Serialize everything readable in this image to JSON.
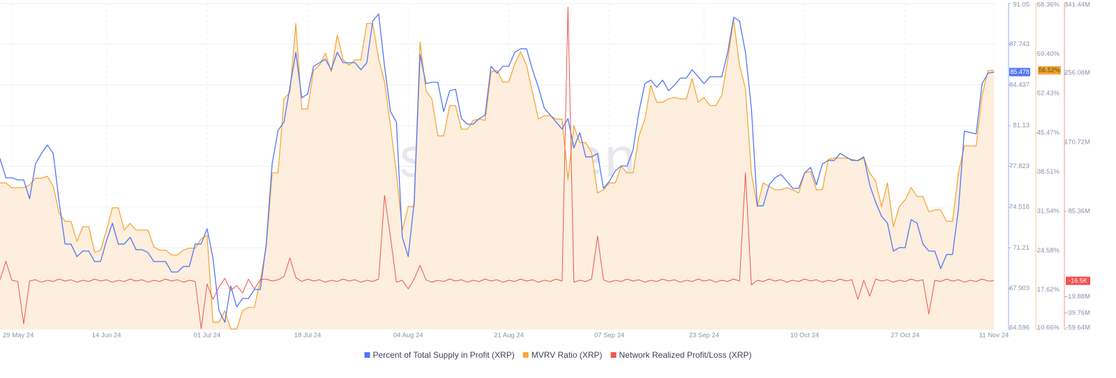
{
  "chart_data": {
    "type": "line",
    "watermark": "·santiment·",
    "categories": [
      null,
      null,
      "29 May 24",
      null,
      null,
      null,
      null,
      null,
      null,
      null,
      null,
      null,
      null,
      null,
      null,
      null,
      null,
      null,
      "14 Jun 24",
      null,
      null,
      null,
      null,
      null,
      null,
      null,
      null,
      null,
      null,
      null,
      null,
      null,
      null,
      null,
      null,
      "01 Jul 24",
      null,
      null,
      null,
      null,
      null,
      null,
      null,
      null,
      null,
      null,
      null,
      null,
      null,
      null,
      null,
      null,
      "18 Jul 24",
      null,
      null,
      null,
      null,
      null,
      null,
      null,
      null,
      null,
      null,
      null,
      null,
      null,
      null,
      null,
      null,
      "04 Aug 24",
      null,
      null,
      null,
      null,
      null,
      null,
      null,
      null,
      null,
      null,
      null,
      null,
      null,
      null,
      null,
      null,
      "21 Aug 24",
      null,
      null,
      null,
      null,
      null,
      null,
      null,
      null,
      null,
      null,
      null,
      null,
      null,
      null,
      null,
      null,
      "07 Sep 24",
      null,
      null,
      null,
      null,
      null,
      null,
      null,
      null,
      null,
      null,
      null,
      null,
      null,
      null,
      null,
      "23 Sep 24",
      null,
      null,
      null,
      null,
      null,
      null,
      null,
      null,
      null,
      null,
      null,
      null,
      null,
      null,
      null,
      null,
      "10 Oct 24",
      null,
      null,
      null,
      null,
      null,
      null,
      null,
      null,
      null,
      null,
      null,
      null,
      null,
      null,
      null,
      null,
      "27 Oct 24",
      null,
      null,
      null,
      null,
      null,
      null,
      null,
      null,
      null,
      null,
      null,
      null,
      null,
      null,
      "11 Nov 24"
    ],
    "series": [
      {
        "name": "Percent of Total Supply in Profit (XRP)",
        "color": "#5275f5",
        "axis": "y",
        "last_label": "85.478",
        "values": [
          78.47,
          76.89,
          76.89,
          76.72,
          76.72,
          75.19,
          78.02,
          78.87,
          79.55,
          78.87,
          74.91,
          71.51,
          71.51,
          70.49,
          70.94,
          70.94,
          70.09,
          70.09,
          71.79,
          73.21,
          71.51,
          71.51,
          72.07,
          71.05,
          71.05,
          70.83,
          70.09,
          70.09,
          70.09,
          69.24,
          69.24,
          69.69,
          69.69,
          71.51,
          71.51,
          72.75,
          70.37,
          66.13,
          65.16,
          68.11,
          66.41,
          67.09,
          67.09,
          67.82,
          67.82,
          71.51,
          78.02,
          80.74,
          81.42,
          84.25,
          87.08,
          83.4,
          83.69,
          85.95,
          86.24,
          86.52,
          85.67,
          87.08,
          86.24,
          86.24,
          86.24,
          85.67,
          86.24,
          89.63,
          90.2,
          85.95,
          82.27,
          81.42,
          72.07,
          70.49,
          74.91,
          86.92,
          84.54,
          84.65,
          84.65,
          82.27,
          83.97,
          84.08,
          81.7,
          81.25,
          81.25,
          81.7,
          81.99,
          85.95,
          85.39,
          85.95,
          85.95,
          87.08,
          87.37,
          87.37,
          85.67,
          84.25,
          82.55,
          81.99,
          81.42,
          80.85,
          81.7,
          79.32,
          80.57,
          78.59,
          78.59,
          78.87,
          76.04,
          76.61,
          77.46,
          77.85,
          77.85,
          79.15,
          82.27,
          84.54,
          84.82,
          84.25,
          84.82,
          83.97,
          84.42,
          84.99,
          84.99,
          85.67,
          85.1,
          84.54,
          85.1,
          85.1,
          85.1,
          87.08,
          89.92,
          89.63,
          87.08,
          82.55,
          74.62,
          74.62,
          76.32,
          76.89,
          77.17,
          76.61,
          76.04,
          76.04,
          77.28,
          77.74,
          76.32,
          78.02,
          78.3,
          78.3,
          78.87,
          78.59,
          78.3,
          78.3,
          78.59,
          76.32,
          74.91,
          73.77,
          73.21,
          70.94,
          71.22,
          71.22,
          73.49,
          73.21,
          71.51,
          70.94,
          70.94,
          69.52,
          70.66,
          70.66,
          74.34,
          80.68,
          80.57,
          80.46,
          84.54,
          85.39,
          85.478
        ]
      },
      {
        "name": "MVRV Ratio (XRP)",
        "color": "#f5a73a",
        "fill": "#fdeedd",
        "axis": "y2",
        "last_label": "56.52%",
        "values": [
          36.57,
          36.57,
          35.73,
          35.73,
          35.73,
          36.21,
          37.4,
          37.4,
          37.76,
          35.97,
          31.2,
          29.77,
          29.77,
          26.2,
          28.82,
          28.82,
          24.29,
          24.65,
          28.22,
          32.16,
          32.16,
          28.22,
          29.41,
          28.22,
          28.22,
          28.22,
          25.24,
          24.65,
          24.65,
          23.81,
          23.81,
          24.65,
          25.0,
          25.0,
          26.67,
          27.27,
          11.89,
          11.89,
          13.92,
          10.7,
          10.7,
          13.92,
          14.52,
          14.52,
          19.28,
          25.24,
          38.35,
          38.35,
          51.46,
          52.65,
          64.81,
          49.67,
          49.67,
          56.47,
          57.42,
          59.57,
          56.23,
          62.78,
          58.37,
          57.42,
          58.37,
          58.37,
          64.81,
          64.81,
          58.61,
          54.44,
          46.7,
          38.35,
          28.22,
          32.39,
          32.39,
          61.59,
          52.89,
          51.46,
          44.91,
          44.91,
          50.27,
          50.27,
          46.1,
          46.1,
          47.65,
          47.89,
          47.65,
          56.23,
          56.47,
          54.44,
          54.44,
          57.66,
          59.81,
          57.42,
          52.65,
          47.89,
          48.48,
          48.48,
          47.89,
          47.89,
          37.16,
          46.7,
          43.72,
          43.72,
          41.93,
          34.78,
          35.37,
          36.57,
          36.57,
          39.54,
          38.35,
          38.35,
          44.91,
          47.89,
          53.85,
          50.87,
          50.87,
          51.46,
          51.7,
          51.46,
          51.46,
          55.04,
          50.87,
          51.7,
          50.27,
          50.27,
          52.06,
          58.37,
          65.53,
          57.42,
          53.25,
          38.35,
          32.39,
          36.57,
          35.97,
          35.37,
          35.37,
          35.73,
          35.37,
          34.78,
          38.35,
          38.59,
          35.37,
          35.37,
          40.74,
          40.98,
          40.98,
          40.98,
          40.74,
          40.5,
          40.98,
          38.35,
          36.92,
          32.39,
          36.57,
          28.82,
          32.39,
          33.59,
          35.73,
          34.18,
          34.18,
          31.44,
          31.8,
          31.8,
          29.77,
          29.77,
          38.35,
          43.12,
          43.12,
          43.12,
          52.06,
          56.47,
          56.52
        ]
      },
      {
        "name": "Network Realized Profit/Loss (XRP)",
        "color": "#f05252",
        "axis": "y3",
        "last_label": "-16.5K",
        "values": [
          1200000,
          24000000,
          600000,
          -900000,
          -53000000,
          -400000,
          1200000,
          -1800000,
          600000,
          -900000,
          2100000,
          -400000,
          1200000,
          -1800000,
          600000,
          -900000,
          2100000,
          -400000,
          1200000,
          -1800000,
          600000,
          -900000,
          2100000,
          -400000,
          1200000,
          -1800000,
          600000,
          -900000,
          2100000,
          -400000,
          1200000,
          -1800000,
          600000,
          -900000,
          -59000000,
          -4000000,
          -23000000,
          -8000000,
          3000000,
          -12000000,
          -6000000,
          -15000000,
          2000000,
          -10000000,
          1500000,
          2100000,
          -400000,
          1200000,
          5000000,
          28000000,
          4000000,
          -900000,
          2100000,
          -400000,
          1200000,
          -1800000,
          600000,
          -900000,
          2100000,
          -400000,
          1200000,
          -1800000,
          600000,
          -900000,
          2100000,
          105000000,
          54000000,
          -1800000,
          600000,
          -10000000,
          2100000,
          19000000,
          1200000,
          -1800000,
          600000,
          -900000,
          2100000,
          -400000,
          1200000,
          -1800000,
          600000,
          -900000,
          2100000,
          -400000,
          1200000,
          -1800000,
          600000,
          -900000,
          2100000,
          -400000,
          1200000,
          -1800000,
          600000,
          -900000,
          2100000,
          -400000,
          337000000,
          -1800000,
          600000,
          -900000,
          2100000,
          55000000,
          1200000,
          -1800000,
          600000,
          -900000,
          2100000,
          -400000,
          1200000,
          -1800000,
          600000,
          -900000,
          2100000,
          -400000,
          1200000,
          -1800000,
          600000,
          -900000,
          2100000,
          -400000,
          1200000,
          -1800000,
          600000,
          -900000,
          2100000,
          -400000,
          133000000,
          -5000000,
          600000,
          -900000,
          2100000,
          -400000,
          1200000,
          -1800000,
          600000,
          -900000,
          2100000,
          -400000,
          1200000,
          -1800000,
          600000,
          -900000,
          2100000,
          -400000,
          1200000,
          -23000000,
          600000,
          -19000000,
          2100000,
          -400000,
          1200000,
          -1800000,
          600000,
          -900000,
          2100000,
          -400000,
          1200000,
          -41000000,
          600000,
          -900000,
          2100000,
          -400000,
          1200000,
          -1800000,
          600000,
          -900000,
          2100000,
          -400000,
          -16500
        ]
      }
    ],
    "ylim": [
      64.596,
      91.05
    ],
    "yticks": [
      64.596,
      67.903,
      71.21,
      74.516,
      77.823,
      81.13,
      84.437,
      87.743,
      91.05
    ],
    "y2lim": [
      10.66,
      68.36
    ],
    "y2ticks": [
      {
        "value": 10.66,
        "label": "10.66%"
      },
      {
        "value": 17.62,
        "label": "17.62%"
      },
      {
        "value": 24.58,
        "label": "24.58%"
      },
      {
        "value": 31.54,
        "label": "31.54%"
      },
      {
        "value": 38.51,
        "label": "38.51%"
      },
      {
        "value": 45.47,
        "label": "45.47%"
      },
      {
        "value": 52.43,
        "label": "52.43%"
      },
      {
        "value": 59.4,
        "label": "59.40%"
      },
      {
        "value": 68.36,
        "label": "68.36%"
      }
    ],
    "y3lim": [
      -59640000,
      341440000
    ],
    "y3ticks": [
      {
        "value": -59640000,
        "label": "-59.64M"
      },
      {
        "value": -39760000,
        "label": "-39.76M"
      },
      {
        "value": -19880000,
        "label": "-19.88M"
      },
      {
        "value": 85360000,
        "label": "85.36M"
      },
      {
        "value": 170720000,
        "label": "170.72M"
      },
      {
        "value": 256080000,
        "label": "256.08M"
      },
      {
        "value": 341440000,
        "label": "341.44M"
      }
    ],
    "grid": true,
    "legend": "bottom"
  }
}
